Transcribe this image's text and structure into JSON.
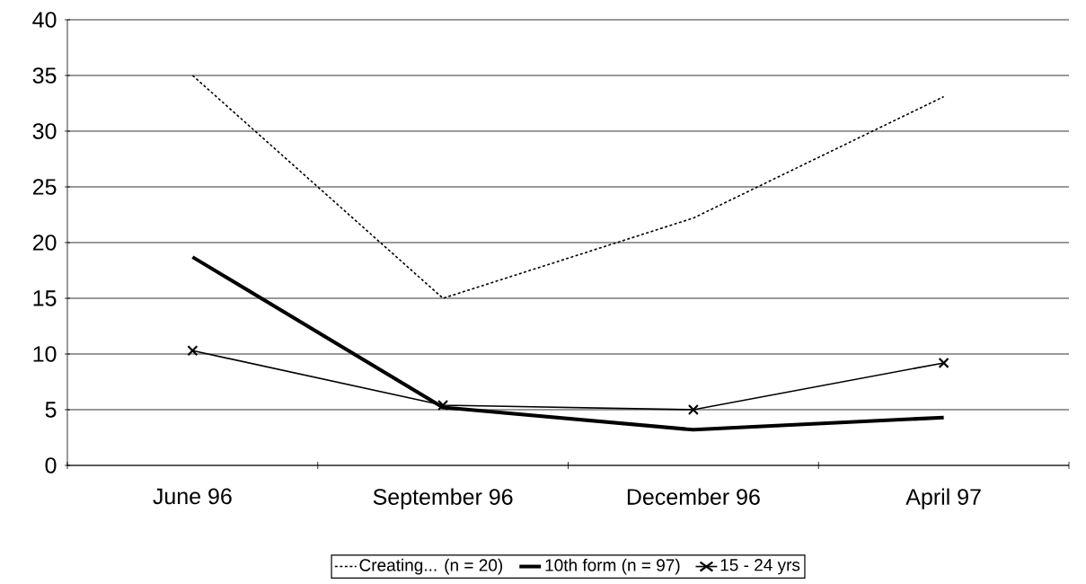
{
  "chart_data": {
    "type": "line",
    "categories": [
      "June 96",
      "September 96",
      "December 96",
      "April 97"
    ],
    "series": [
      {
        "name": "Creating... (n = 20)",
        "color": "#000000",
        "line_style": "dashed",
        "marker": "none",
        "values": [
          35,
          15,
          22.2,
          33.1
        ]
      },
      {
        "name": "10th form (n = 97)",
        "color": "#000000",
        "line_style": "solid",
        "marker": "none",
        "values": [
          18.7,
          5.2,
          3.2,
          4.3
        ]
      },
      {
        "name": "15 - 24 yrs",
        "color": "#000000",
        "line_style": "solid",
        "marker": "cross",
        "values": [
          10.3,
          5.4,
          5.0,
          9.2
        ]
      }
    ],
    "ylim": [
      0,
      40
    ],
    "yticks": [
      0,
      5,
      10,
      15,
      20,
      25,
      30,
      35,
      40
    ],
    "grid": "y",
    "legend": "bottom"
  }
}
